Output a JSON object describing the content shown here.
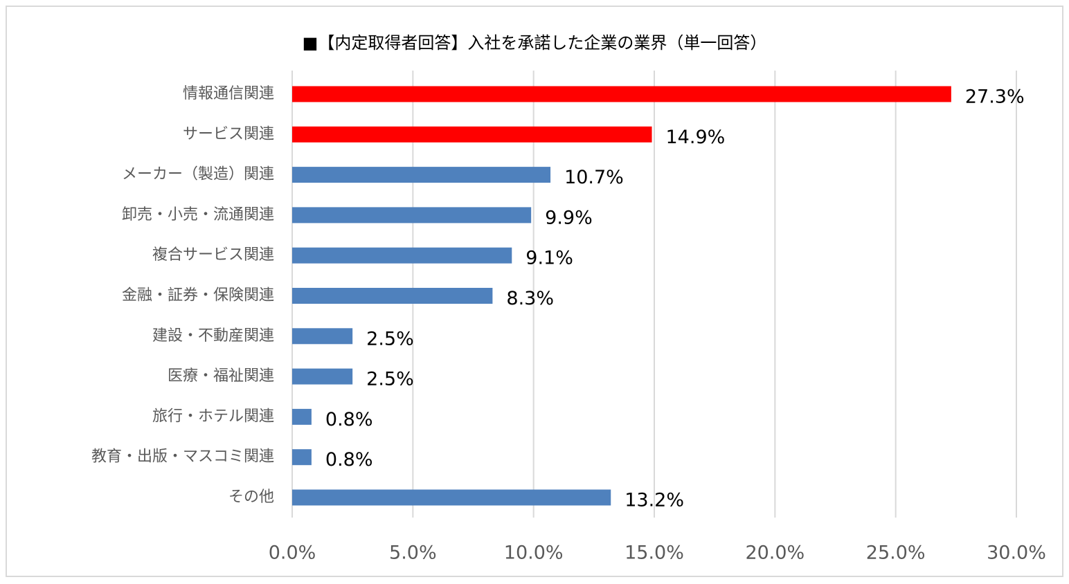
{
  "chart_data": {
    "type": "bar",
    "orientation": "horizontal",
    "title": "■【内定取得者回答】入社を承諾した企業の業界（単一回答）",
    "categories": [
      "情報通信関連",
      "サービス関連",
      "メーカー（製造）関連",
      "卸売・小売・流通関連",
      "複合サービス関連",
      "金融・証券・保険関連",
      "建設・不動産関連",
      "医療・福祉関連",
      "旅行・ホテル関連",
      "教育・出版・マスコミ関連",
      "その他"
    ],
    "values": [
      27.3,
      14.9,
      10.7,
      9.9,
      9.1,
      8.3,
      2.5,
      2.5,
      0.8,
      0.8,
      13.2
    ],
    "value_labels": [
      "27.3%",
      "14.9%",
      "10.7%",
      "9.9%",
      "9.1%",
      "8.3%",
      "2.5%",
      "2.5%",
      "0.8%",
      "0.8%",
      "13.2%"
    ],
    "bar_colors": [
      "#ff0000",
      "#ff0000",
      "#4f81bd",
      "#4f81bd",
      "#4f81bd",
      "#4f81bd",
      "#4f81bd",
      "#4f81bd",
      "#4f81bd",
      "#4f81bd",
      "#4f81bd"
    ],
    "xlim": [
      0,
      30
    ],
    "ticks": [
      0,
      5,
      10,
      15,
      20,
      25,
      30
    ],
    "tick_labels": [
      "0.0%",
      "5.0%",
      "10.0%",
      "15.0%",
      "20.0%",
      "25.0%",
      "30.0%"
    ],
    "grid": "vertical",
    "legend": "none",
    "xlabel": "",
    "ylabel": "",
    "grid_color": "#d9d9d9"
  }
}
